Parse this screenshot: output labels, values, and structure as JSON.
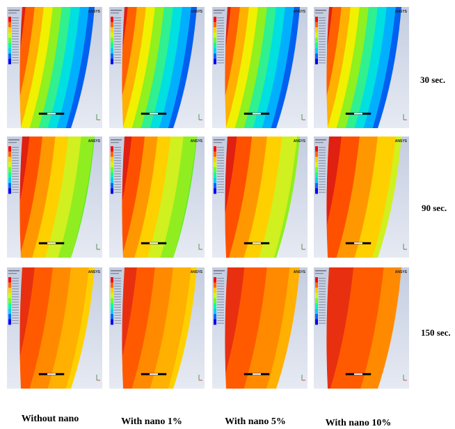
{
  "figure": {
    "columns": [
      "Without nano",
      "With nano 1%",
      "With nano 5%",
      "With nano 10%"
    ],
    "rows": [
      "30 sec.",
      "90 sec.",
      "150 sec."
    ],
    "logo_text": "ANSYS"
  },
  "colors": {
    "background_gradient": [
      "#c4cde0",
      "#e6eaf3"
    ],
    "row_30_bands": [
      "#e02010",
      "#ff6000",
      "#ffb000",
      "#f0f000",
      "#90f020",
      "#30f090",
      "#00e0e0",
      "#00b0ff",
      "#0060f0",
      "#1030d0"
    ],
    "row_90_bands": [
      "#e02010",
      "#ff5000",
      "#ff9800",
      "#ffd000",
      "#d0f020",
      "#90ee20",
      "#60e830"
    ],
    "row_150_bands": [
      "#e83010",
      "#ff5a00",
      "#ff8a00",
      "#ffb000",
      "#ffd000"
    ],
    "legend": [
      "#ff0000",
      "#ff6600",
      "#ffcc00",
      "#ccff00",
      "#66ff33",
      "#00ff99",
      "#00ccff",
      "#0066ff",
      "#0000ee"
    ]
  }
}
